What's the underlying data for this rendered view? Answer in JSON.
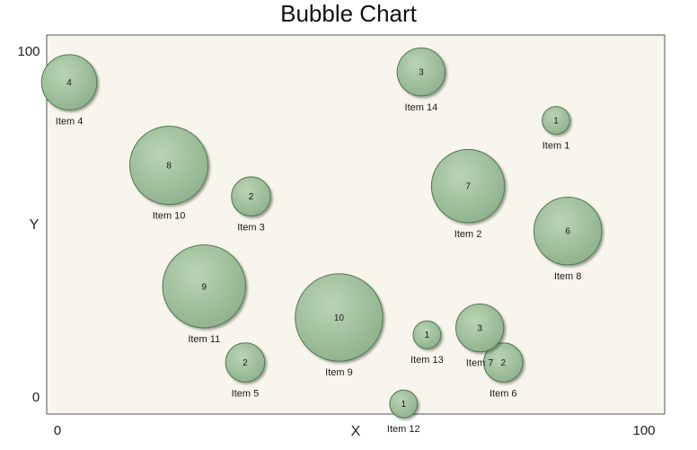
{
  "chart_data": {
    "type": "scatter",
    "subtype": "bubble",
    "title": "Bubble Chart",
    "xlabel": "X",
    "ylabel": "Y",
    "xlim": [
      0,
      100
    ],
    "ylim": [
      0,
      100
    ],
    "x_ticks": [
      "0",
      "100"
    ],
    "y_ticks": [
      "0",
      "100"
    ],
    "grid": false,
    "colors": {
      "bubble_fill": "#9dbf9a",
      "bubble_stroke": "#4f7a50",
      "plot_background": "#f8f5ec",
      "plot_border": "#555555"
    },
    "points": [
      {
        "label": "Item 1",
        "x": 85,
        "y": 80,
        "size": 1
      },
      {
        "label": "Item 2",
        "x": 70,
        "y": 61,
        "size": 7
      },
      {
        "label": "Item 3",
        "x": 33,
        "y": 58,
        "size": 2
      },
      {
        "label": "Item 4",
        "x": 2,
        "y": 91,
        "size": 4
      },
      {
        "label": "Item 5",
        "x": 32,
        "y": 10,
        "size": 2
      },
      {
        "label": "Item 6",
        "x": 76,
        "y": 10,
        "size": 2
      },
      {
        "label": "Item 7",
        "x": 72,
        "y": 20,
        "size": 3
      },
      {
        "label": "Item 8",
        "x": 87,
        "y": 48,
        "size": 6
      },
      {
        "label": "Item 9",
        "x": 48,
        "y": 23,
        "size": 10
      },
      {
        "label": "Item 10",
        "x": 19,
        "y": 67,
        "size": 8
      },
      {
        "label": "Item 11",
        "x": 25,
        "y": 32,
        "size": 9
      },
      {
        "label": "Item 12",
        "x": 59,
        "y": -2,
        "size": 1
      },
      {
        "label": "Item 13",
        "x": 63,
        "y": 18,
        "size": 1
      },
      {
        "label": "Item 14",
        "x": 62,
        "y": 94,
        "size": 3
      }
    ]
  }
}
